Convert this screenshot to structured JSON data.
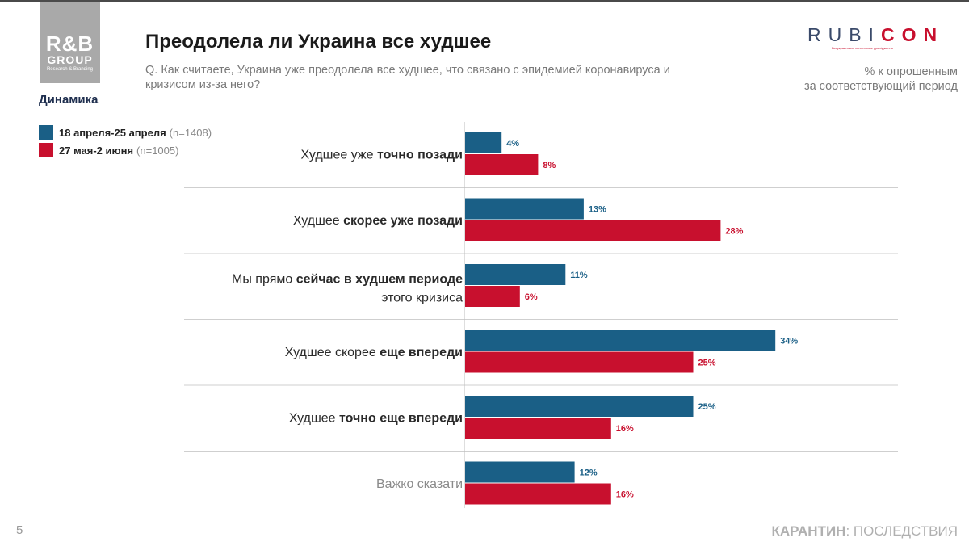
{
  "header": {
    "title": "Преодолела ли Украина все худшее",
    "question_line1": "Q. Как считаете, Украина уже преодолела все худшее, что связано с эпидемией коронавируса и",
    "question_line2": "кризисом из-за него?",
    "unit_line1": "% к опрошенным",
    "unit_line2": "за соответствующий период"
  },
  "logo_rb": {
    "line1": "R&B",
    "line2": "GROUP",
    "line3": "Research & Branding"
  },
  "logo_rubicon": {
    "pre": "RUBI",
    "highlight": "CON",
    "sub": "Всеукраинские политичные дослідження"
  },
  "section_label": "Динамика",
  "legend": [
    {
      "label": "18 апреля-25 апреля",
      "n": "(n=1408)",
      "color": "#1a5f86"
    },
    {
      "label": "27 мая-2 июня",
      "n": "(n=1005)",
      "color": "#c8102e"
    }
  ],
  "footer": {
    "page_number": "5",
    "bold": "КАРАНТИН",
    "rest": ": ПОСЛЕДСТВИЯ"
  },
  "chart_data": {
    "type": "bar",
    "orientation": "horizontal",
    "title": "Преодолела ли Украина все худшее",
    "categories": [
      [
        {
          "t": "Худшее уже ",
          "b": false
        },
        {
          "t": "точно позади",
          "b": true
        }
      ],
      [
        {
          "t": "Худшее ",
          "b": false
        },
        {
          "t": "скорее уже позади",
          "b": true
        }
      ],
      [
        {
          "t": "Мы прямо ",
          "b": false
        },
        {
          "t": "сейчас в худшем периоде",
          "b": true
        }
      ],
      [
        {
          "t": "Худшее скорее ",
          "b": false
        },
        {
          "t": "еще впереди",
          "b": true
        }
      ],
      [
        {
          "t": "Худшее ",
          "b": false
        },
        {
          "t": "точно еще впереди",
          "b": true
        }
      ],
      [
        {
          "t": "Важко сказати",
          "b": false
        }
      ]
    ],
    "category_line2": [
      "",
      "",
      "этого кризиса",
      "",
      "",
      ""
    ],
    "category_grey": [
      false,
      false,
      false,
      false,
      false,
      true
    ],
    "series": [
      {
        "name": "18 апреля-25 апреля",
        "color": "#1a5f86",
        "values": [
          4,
          13,
          11,
          34,
          25,
          12
        ]
      },
      {
        "name": "27 мая-2 июня",
        "color": "#c8102e",
        "values": [
          8,
          28,
          6,
          25,
          16,
          16
        ]
      }
    ],
    "value_suffix": "%",
    "xlim": [
      0,
      40
    ]
  }
}
